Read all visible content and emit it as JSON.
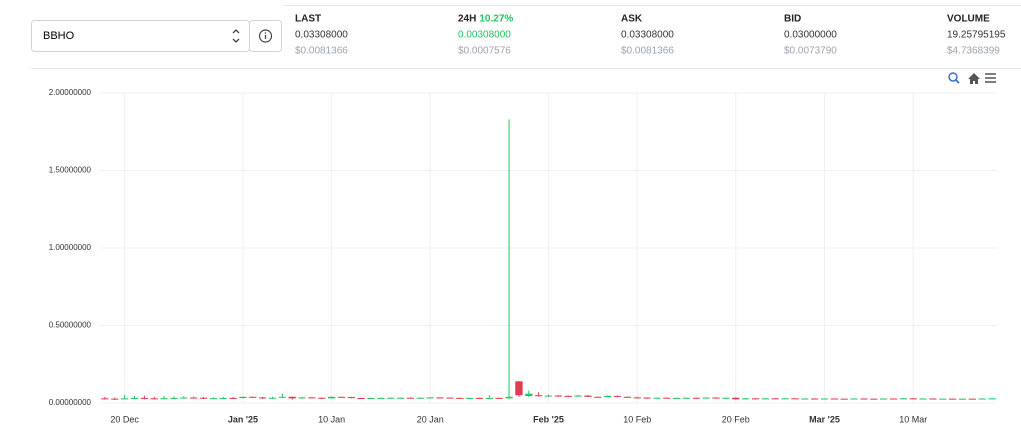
{
  "market": {
    "symbol": "BBHO",
    "stats": [
      {
        "label": "LAST",
        "value": "0.03308000",
        "usd": "$0.0081366"
      },
      {
        "label": "24H",
        "change": "10.27%",
        "value": "0.00308000",
        "usd": "$0.0007576"
      },
      {
        "label": "ASK",
        "value": "0.03308000",
        "usd": "$0.0081366"
      },
      {
        "label": "BID",
        "value": "0.03000000",
        "usd": "$0.0073790"
      },
      {
        "label": "VOLUME",
        "value": "19.25795195",
        "usd": "$4.7368399"
      }
    ]
  },
  "chart_data": {
    "type": "candlestick",
    "up_color": "#22c55e",
    "down_color": "#e23a4f",
    "grid": true,
    "categories": [
      null,
      null,
      "20 Dec",
      null,
      null,
      null,
      null,
      null,
      null,
      null,
      null,
      null,
      null,
      null,
      "Jan '25",
      null,
      null,
      null,
      null,
      null,
      null,
      null,
      null,
      "10 Jan",
      null,
      null,
      null,
      null,
      null,
      null,
      null,
      null,
      null,
      "20 Jan",
      null,
      null,
      null,
      null,
      null,
      null,
      null,
      null,
      null,
      null,
      null,
      "Feb '25",
      null,
      null,
      null,
      null,
      null,
      null,
      null,
      null,
      "10 Feb",
      null,
      null,
      null,
      null,
      null,
      null,
      null,
      null,
      null,
      "20 Feb",
      null,
      null,
      null,
      null,
      null,
      null,
      null,
      null,
      "Mar '25",
      null,
      null,
      null,
      null,
      null,
      null,
      null,
      null,
      "10 Mar",
      null,
      null,
      null,
      null,
      null,
      null,
      null,
      null
    ],
    "open": [
      0.03,
      0.028,
      0.027,
      0.03,
      0.033,
      0.03,
      0.029,
      0.031,
      0.033,
      0.035,
      0.034,
      0.03,
      0.031,
      0.033,
      0.032,
      0.04,
      0.036,
      0.03,
      0.034,
      0.04,
      0.03,
      0.036,
      0.034,
      0.03,
      0.04,
      0.038,
      0.032,
      0.03,
      0.032,
      0.033,
      0.034,
      0.034,
      0.033,
      0.034,
      0.036,
      0.035,
      0.033,
      0.032,
      0.033,
      0.032,
      0.033,
      0.03,
      0.14,
      0.045,
      0.05,
      0.044,
      0.048,
      0.046,
      0.045,
      0.048,
      0.04,
      0.038,
      0.046,
      0.04,
      0.036,
      0.035,
      0.033,
      0.034,
      0.032,
      0.033,
      0.034,
      0.032,
      0.035,
      0.033,
      0.034,
      0.024,
      0.03,
      0.026,
      0.03,
      0.028,
      0.03,
      0.028,
      0.029,
      0.027,
      0.029,
      0.028,
      0.027,
      0.029,
      0.028,
      0.027,
      0.029,
      0.028,
      0.03,
      0.028,
      0.029,
      0.027,
      0.028,
      0.026,
      0.028,
      0.026,
      0.029
    ],
    "high": [
      0.04,
      0.035,
      0.052,
      0.045,
      0.048,
      0.04,
      0.045,
      0.042,
      0.044,
      0.041,
      0.038,
      0.036,
      0.04,
      0.038,
      0.042,
      0.042,
      0.038,
      0.04,
      0.062,
      0.042,
      0.04,
      0.038,
      0.036,
      0.042,
      0.041,
      0.04,
      0.034,
      0.035,
      0.035,
      0.036,
      0.036,
      0.036,
      0.036,
      0.038,
      0.037,
      0.036,
      0.035,
      0.035,
      0.035,
      0.05,
      0.034,
      1.83,
      0.14,
      0.08,
      0.07,
      0.055,
      0.052,
      0.05,
      0.052,
      0.05,
      0.042,
      0.048,
      0.048,
      0.042,
      0.04,
      0.037,
      0.036,
      0.035,
      0.035,
      0.036,
      0.036,
      0.037,
      0.037,
      0.036,
      0.036,
      0.032,
      0.032,
      0.032,
      0.031,
      0.031,
      0.031,
      0.03,
      0.03,
      0.03,
      0.03,
      0.029,
      0.03,
      0.03,
      0.029,
      0.03,
      0.03,
      0.031,
      0.031,
      0.03,
      0.03,
      0.029,
      0.029,
      0.029,
      0.029,
      0.031,
      0.032
    ],
    "low": [
      0.022,
      0.02,
      0.024,
      0.026,
      0.024,
      0.023,
      0.025,
      0.027,
      0.03,
      0.029,
      0.026,
      0.027,
      0.028,
      0.028,
      0.03,
      0.034,
      0.026,
      0.028,
      0.032,
      0.022,
      0.028,
      0.03,
      0.026,
      0.028,
      0.036,
      0.03,
      0.028,
      0.029,
      0.03,
      0.031,
      0.032,
      0.031,
      0.031,
      0.033,
      0.033,
      0.031,
      0.03,
      0.031,
      0.03,
      0.031,
      0.028,
      0.028,
      0.04,
      0.04,
      0.04,
      0.04,
      0.042,
      0.042,
      0.043,
      0.038,
      0.035,
      0.036,
      0.038,
      0.034,
      0.033,
      0.031,
      0.031,
      0.03,
      0.03,
      0.031,
      0.03,
      0.03,
      0.031,
      0.031,
      0.022,
      0.022,
      0.024,
      0.024,
      0.026,
      0.026,
      0.026,
      0.026,
      0.025,
      0.025,
      0.026,
      0.025,
      0.025,
      0.026,
      0.025,
      0.025,
      0.026,
      0.026,
      0.026,
      0.026,
      0.025,
      0.025,
      0.024,
      0.024,
      0.024,
      0.024,
      0.027
    ],
    "close": [
      0.028,
      0.027,
      0.03,
      0.033,
      0.03,
      0.029,
      0.031,
      0.033,
      0.035,
      0.034,
      0.03,
      0.031,
      0.033,
      0.032,
      0.04,
      0.036,
      0.03,
      0.034,
      0.04,
      0.03,
      0.036,
      0.034,
      0.03,
      0.04,
      0.038,
      0.032,
      0.03,
      0.032,
      0.033,
      0.034,
      0.034,
      0.033,
      0.034,
      0.036,
      0.035,
      0.033,
      0.032,
      0.033,
      0.032,
      0.033,
      0.03,
      0.04,
      0.05,
      0.06,
      0.044,
      0.048,
      0.046,
      0.045,
      0.048,
      0.04,
      0.038,
      0.046,
      0.04,
      0.036,
      0.035,
      0.033,
      0.034,
      0.032,
      0.033,
      0.034,
      0.032,
      0.035,
      0.033,
      0.034,
      0.024,
      0.03,
      0.026,
      0.03,
      0.028,
      0.03,
      0.028,
      0.029,
      0.027,
      0.029,
      0.028,
      0.027,
      0.029,
      0.028,
      0.027,
      0.029,
      0.028,
      0.03,
      0.028,
      0.029,
      0.027,
      0.028,
      0.026,
      0.028,
      0.026,
      0.029,
      0.03
    ],
    "ylim": [
      0,
      2
    ],
    "yticks": [
      {
        "value": 0,
        "label": "0.00000000"
      },
      {
        "value": 0.5,
        "label": "0.50000000"
      },
      {
        "value": 1,
        "label": "1.00000000"
      },
      {
        "value": 1.5,
        "label": "1.50000000"
      },
      {
        "value": 2,
        "label": "2.00000000"
      }
    ]
  }
}
